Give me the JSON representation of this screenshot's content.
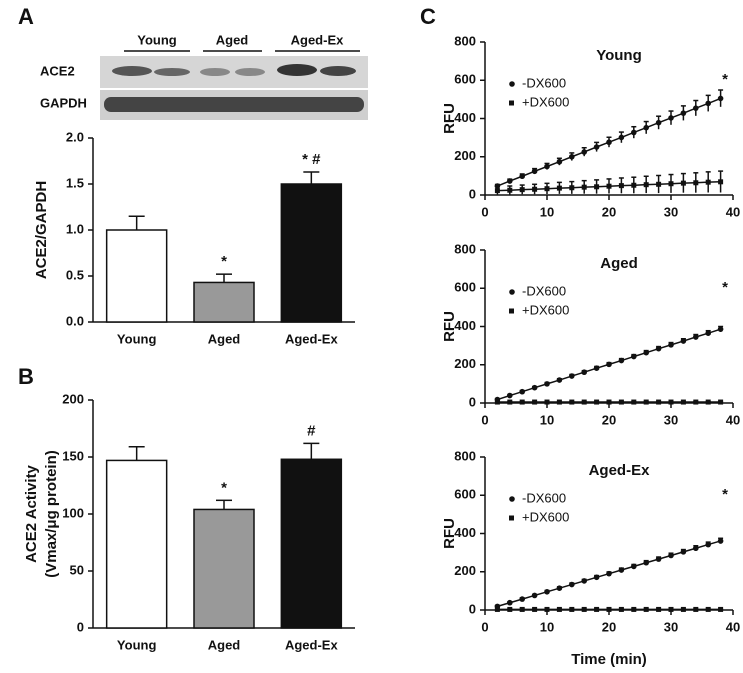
{
  "panel_labels": [
    "A",
    "B",
    "C"
  ],
  "blot": {
    "groups": [
      "Young",
      "Aged",
      "Aged-Ex"
    ],
    "rows": [
      "ACE2",
      "GAPDH"
    ]
  },
  "chart_data": [
    {
      "type": "bar",
      "ylabel": "ACE2/GAPDH",
      "categories": [
        "Young",
        "Aged",
        "Aged-Ex"
      ],
      "values": [
        1.0,
        0.43,
        1.5
      ],
      "errors": [
        0.15,
        0.09,
        0.13
      ],
      "colors": [
        "#ffffff",
        "#999999",
        "#111111"
      ],
      "annotations": [
        null,
        "*",
        "* #"
      ],
      "ylim": [
        0,
        2
      ],
      "yticks": [
        {
          "value": 0,
          "label": "0.0"
        },
        {
          "value": 0.5,
          "label": "0.5"
        },
        {
          "value": 1,
          "label": "1.0"
        },
        {
          "value": 1.5,
          "label": "1.5"
        },
        {
          "value": 2,
          "label": "2.0"
        }
      ]
    },
    {
      "type": "bar",
      "ylabel_lines": [
        "ACE2 Activity",
        "(Vmax/μg protein)"
      ],
      "categories": [
        "Young",
        "Aged",
        "Aged-Ex"
      ],
      "values": [
        147,
        104,
        148
      ],
      "errors": [
        12,
        8,
        14
      ],
      "colors": [
        "#ffffff",
        "#999999",
        "#111111"
      ],
      "annotations": [
        null,
        "*",
        "#"
      ],
      "ylim": [
        0,
        200
      ],
      "yticks": [
        0,
        50,
        100,
        150,
        200
      ]
    },
    {
      "type": "scatter",
      "title": "Young",
      "ylabel": "RFU",
      "annotation": "*",
      "x": [
        2,
        4,
        6,
        8,
        10,
        12,
        14,
        16,
        18,
        20,
        22,
        24,
        26,
        28,
        30,
        32,
        34,
        36,
        38
      ],
      "series": [
        {
          "name": "-DX600",
          "color": "#111111",
          "marker": "circle",
          "values": [
            47,
            73,
            98,
            124,
            149,
            174,
            200,
            225,
            251,
            276,
            301,
            327,
            352,
            378,
            403,
            428,
            454,
            479,
            505
          ],
          "errors": [
            8,
            10,
            12,
            14,
            16,
            18,
            20,
            22,
            24,
            26,
            28,
            30,
            32,
            34,
            36,
            38,
            40,
            42,
            44
          ]
        },
        {
          "name": "+DX600",
          "color": "#111111",
          "marker": "square",
          "values": [
            23,
            25,
            28,
            30,
            33,
            36,
            38,
            41,
            43,
            46,
            49,
            51,
            54,
            56,
            59,
            62,
            64,
            67,
            69
          ],
          "errors": [
            20,
            22,
            24,
            26,
            28,
            30,
            32,
            34,
            36,
            38,
            40,
            42,
            44,
            46,
            48,
            50,
            52,
            54,
            56
          ]
        }
      ],
      "xlim": [
        0,
        40
      ],
      "xticks": [
        0,
        10,
        20,
        30,
        40
      ],
      "ylim": [
        0,
        800
      ],
      "yticks": [
        0,
        200,
        400,
        600,
        800
      ]
    },
    {
      "type": "scatter",
      "title": "Aged",
      "ylabel": "RFU",
      "annotation": "*",
      "x": [
        2,
        4,
        6,
        8,
        10,
        12,
        14,
        16,
        18,
        20,
        22,
        24,
        26,
        28,
        30,
        32,
        34,
        36,
        38
      ],
      "series": [
        {
          "name": "-DX600",
          "color": "#111111",
          "marker": "circle",
          "values": [
            18,
            39,
            59,
            80,
            100,
            120,
            141,
            161,
            182,
            202,
            222,
            243,
            263,
            284,
            304,
            324,
            345,
            365,
            386
          ],
          "errors": [
            5,
            5,
            6,
            6,
            7,
            7,
            8,
            8,
            9,
            9,
            10,
            10,
            11,
            11,
            12,
            12,
            13,
            13,
            14
          ]
        },
        {
          "name": "+DX600",
          "color": "#111111",
          "marker": "square",
          "values": [
            5,
            5,
            5,
            5,
            5,
            5,
            5,
            5,
            5,
            5,
            5,
            5,
            5,
            5,
            5,
            5,
            5,
            5,
            5
          ],
          "errors": [
            2,
            2,
            2,
            2,
            2,
            2,
            2,
            2,
            2,
            2,
            2,
            2,
            2,
            2,
            2,
            2,
            2,
            2,
            2
          ]
        }
      ],
      "xlim": [
        0,
        40
      ],
      "xticks": [
        0,
        10,
        20,
        30,
        40
      ],
      "ylim": [
        0,
        800
      ],
      "yticks": [
        0,
        200,
        400,
        600,
        800
      ]
    },
    {
      "type": "scatter",
      "title": "Aged-Ex",
      "ylabel": "RFU",
      "xlabel": "Time (min)",
      "annotation": "*",
      "x": [
        2,
        4,
        6,
        8,
        10,
        12,
        14,
        16,
        18,
        20,
        22,
        24,
        26,
        28,
        30,
        32,
        34,
        36,
        38
      ],
      "series": [
        {
          "name": "-DX600",
          "color": "#111111",
          "marker": "circle",
          "values": [
            19,
            38,
            57,
            76,
            95,
            114,
            133,
            152,
            171,
            190,
            209,
            228,
            247,
            266,
            285,
            304,
            323,
            342,
            361
          ],
          "errors": [
            5,
            5,
            6,
            6,
            7,
            7,
            8,
            8,
            9,
            9,
            10,
            10,
            11,
            11,
            12,
            12,
            13,
            13,
            14
          ]
        },
        {
          "name": "+DX600",
          "color": "#111111",
          "marker": "square",
          "values": [
            3,
            3,
            3,
            3,
            3,
            3,
            3,
            3,
            3,
            3,
            3,
            3,
            3,
            3,
            3,
            3,
            3,
            3,
            3
          ],
          "errors": [
            2,
            2,
            2,
            2,
            2,
            2,
            2,
            2,
            2,
            2,
            2,
            2,
            2,
            2,
            2,
            2,
            2,
            2,
            2
          ]
        }
      ],
      "xlim": [
        0,
        40
      ],
      "xticks": [
        0,
        10,
        20,
        30,
        40
      ],
      "ylim": [
        0,
        800
      ],
      "yticks": [
        0,
        200,
        400,
        600,
        800
      ]
    }
  ]
}
